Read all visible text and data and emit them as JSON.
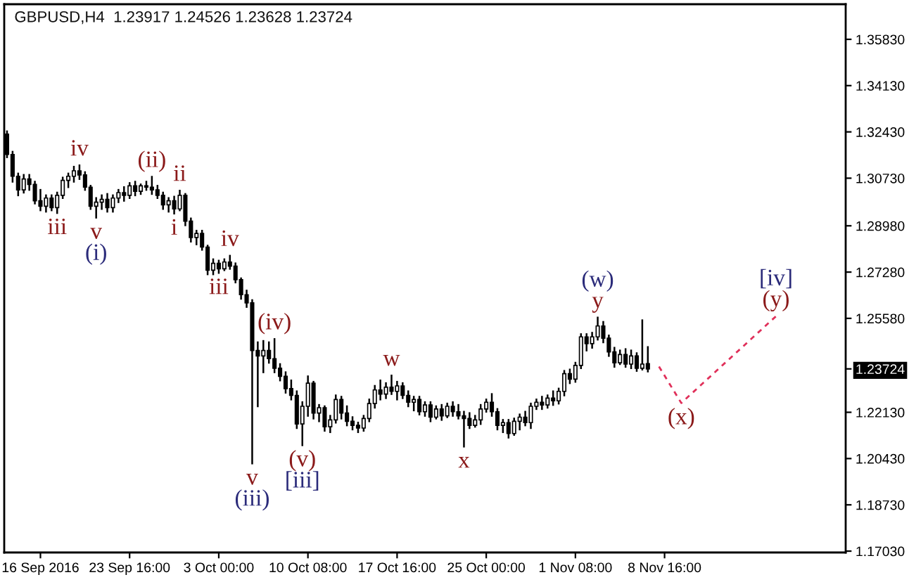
{
  "chart_data": {
    "type": "candlestick",
    "title": "GBPUSD,H4  1.23917 1.24526 1.23628 1.23724",
    "color": "#000000",
    "categories": [
      null,
      null,
      null,
      null,
      null,
      null,
      "16 Sep 2016",
      null,
      null,
      null,
      null,
      null,
      null,
      null,
      null,
      null,
      null,
      null,
      null,
      null,
      null,
      null,
      "23 Sep 16:00",
      null,
      null,
      null,
      null,
      null,
      null,
      null,
      null,
      null,
      null,
      null,
      null,
      null,
      null,
      null,
      "3 Oct 00:00",
      null,
      null,
      null,
      null,
      null,
      null,
      null,
      null,
      null,
      null,
      null,
      null,
      null,
      null,
      null,
      "10 Oct 08:00",
      null,
      null,
      null,
      null,
      null,
      null,
      null,
      null,
      null,
      null,
      null,
      null,
      null,
      null,
      null,
      "17 Oct 16:00",
      null,
      null,
      null,
      null,
      null,
      null,
      null,
      null,
      null,
      null,
      null,
      null,
      null,
      null,
      null,
      "25 Oct 00:00",
      null,
      null,
      null,
      null,
      null,
      null,
      null,
      null,
      null,
      null,
      null,
      null,
      null,
      null,
      null,
      "1 Nov 08:00",
      null,
      null,
      null,
      null,
      null,
      null,
      null,
      null,
      null,
      null,
      null,
      null,
      null,
      null,
      null,
      "8 Nov 16:00",
      null,
      null,
      null,
      null,
      null,
      null,
      null,
      null,
      null,
      null,
      null,
      null,
      null,
      null,
      null,
      null,
      null,
      null,
      null,
      null,
      null,
      null,
      null,
      null,
      null,
      null,
      null,
      null,
      null,
      null,
      null,
      null
    ],
    "ohlc": [
      [
        1.3235,
        1.3245,
        1.315,
        1.316
      ],
      [
        1.316,
        1.317,
        1.306,
        1.308
      ],
      [
        1.308,
        1.309,
        1.301,
        1.303
      ],
      [
        1.303,
        1.3085,
        1.302,
        1.307
      ],
      [
        1.307,
        1.3085,
        1.303,
        1.305
      ],
      [
        1.305,
        1.306,
        1.298,
        1.299
      ],
      [
        1.299,
        1.303,
        1.2955,
        1.297
      ],
      [
        1.297,
        1.301,
        1.295,
        1.3
      ],
      [
        1.3,
        1.301,
        1.2955,
        1.2965
      ],
      [
        1.2965,
        1.302,
        1.2945,
        1.301
      ],
      [
        1.301,
        1.3075,
        1.3,
        1.3065
      ],
      [
        1.3065,
        1.309,
        1.304,
        1.308
      ],
      [
        1.308,
        1.3115,
        1.306,
        1.31
      ],
      [
        1.31,
        1.312,
        1.307,
        1.3085
      ],
      [
        1.3085,
        1.3095,
        1.303,
        1.304
      ],
      [
        1.304,
        1.3045,
        1.296,
        1.297
      ],
      [
        1.297,
        1.3,
        1.2928,
        1.2985
      ],
      [
        1.2985,
        1.301,
        1.296,
        1.2995
      ],
      [
        1.2995,
        1.3015,
        1.295,
        1.2965
      ],
      [
        1.2965,
        1.301,
        1.295,
        1.3
      ],
      [
        1.3,
        1.303,
        1.2985,
        1.302
      ],
      [
        1.302,
        1.304,
        1.299,
        1.301
      ],
      [
        1.301,
        1.3055,
        1.3,
        1.3045
      ],
      [
        1.3045,
        1.306,
        1.301,
        1.3025
      ],
      [
        1.3025,
        1.305,
        1.3015,
        1.3045
      ],
      [
        1.3045,
        1.306,
        1.303,
        1.304
      ],
      [
        1.304,
        1.3078,
        1.3015,
        1.303
      ],
      [
        1.303,
        1.3045,
        1.3,
        1.301
      ],
      [
        1.301,
        1.302,
        1.296,
        1.2975
      ],
      [
        1.2975,
        1.3,
        1.295,
        1.299
      ],
      [
        1.299,
        1.3005,
        1.2943,
        1.296
      ],
      [
        1.296,
        1.3027,
        1.2955,
        1.301
      ],
      [
        1.301,
        1.3015,
        1.29,
        1.2915
      ],
      [
        1.2915,
        1.2925,
        1.284,
        1.2855
      ],
      [
        1.2855,
        1.288,
        1.283,
        1.287
      ],
      [
        1.287,
        1.288,
        1.281,
        1.282
      ],
      [
        1.282,
        1.2825,
        1.272,
        1.2735
      ],
      [
        1.2735,
        1.2775,
        1.272,
        1.276
      ],
      [
        1.276,
        1.277,
        1.2725,
        1.274
      ],
      [
        1.274,
        1.2775,
        1.2735,
        1.2765
      ],
      [
        1.2765,
        1.2788,
        1.274,
        1.275
      ],
      [
        1.275,
        1.276,
        1.269,
        1.27
      ],
      [
        1.27,
        1.2705,
        1.263,
        1.2645
      ],
      [
        1.2645,
        1.266,
        1.26,
        1.2615
      ],
      [
        1.2615,
        1.2625,
        1.2025,
        1.244
      ],
      [
        1.244,
        1.247,
        1.2235,
        1.242
      ],
      [
        1.242,
        1.2475,
        1.236,
        1.244
      ],
      [
        1.244,
        1.247,
        1.2395,
        1.241
      ],
      [
        1.241,
        1.2482,
        1.236,
        1.2375
      ],
      [
        1.2375,
        1.239,
        1.233,
        1.2345
      ],
      [
        1.2345,
        1.236,
        1.2285,
        1.23
      ],
      [
        1.23,
        1.233,
        1.226,
        1.2275
      ],
      [
        1.2275,
        1.229,
        1.2155,
        1.217
      ],
      [
        1.217,
        1.225,
        1.2092,
        1.2235
      ],
      [
        1.2235,
        1.2345,
        1.22,
        1.232
      ],
      [
        1.232,
        1.2325,
        1.219,
        1.221
      ],
      [
        1.221,
        1.224,
        1.218,
        1.223
      ],
      [
        1.223,
        1.2235,
        1.2145,
        1.216
      ],
      [
        1.216,
        1.22,
        1.214,
        1.2185
      ],
      [
        1.2185,
        1.2275,
        1.2175,
        1.226
      ],
      [
        1.226,
        1.227,
        1.219,
        1.221
      ],
      [
        1.221,
        1.2235,
        1.2165,
        1.218
      ],
      [
        1.218,
        1.2195,
        1.215,
        1.2165
      ],
      [
        1.2165,
        1.2175,
        1.214,
        1.2155
      ],
      [
        1.2155,
        1.22,
        1.2145,
        1.219
      ],
      [
        1.219,
        1.226,
        1.218,
        1.2245
      ],
      [
        1.2245,
        1.231,
        1.223,
        1.2295
      ],
      [
        1.2295,
        1.233,
        1.226,
        1.228
      ],
      [
        1.228,
        1.232,
        1.2265,
        1.2305
      ],
      [
        1.2305,
        1.2348,
        1.228,
        1.229
      ],
      [
        1.229,
        1.2325,
        1.226,
        1.231
      ],
      [
        1.231,
        1.232,
        1.2265,
        1.2275
      ],
      [
        1.2275,
        1.229,
        1.2235,
        1.225
      ],
      [
        1.225,
        1.227,
        1.222,
        1.226
      ],
      [
        1.226,
        1.227,
        1.2205,
        1.2215
      ],
      [
        1.2215,
        1.225,
        1.22,
        1.224
      ],
      [
        1.224,
        1.225,
        1.218,
        1.2195
      ],
      [
        1.2195,
        1.2235,
        1.219,
        1.2225
      ],
      [
        1.2225,
        1.224,
        1.2185,
        1.22
      ],
      [
        1.22,
        1.2245,
        1.2195,
        1.2235
      ],
      [
        1.2235,
        1.225,
        1.22,
        1.2215
      ],
      [
        1.2215,
        1.224,
        1.219,
        1.22
      ],
      [
        1.22,
        1.2215,
        1.2087,
        1.219
      ],
      [
        1.219,
        1.221,
        1.2155,
        1.2165
      ],
      [
        1.2165,
        1.22,
        1.216,
        1.2185
      ],
      [
        1.2185,
        1.224,
        1.217,
        1.2225
      ],
      [
        1.2225,
        1.226,
        1.2215,
        1.225
      ],
      [
        1.225,
        1.228,
        1.22,
        1.2215
      ],
      [
        1.2215,
        1.2225,
        1.215,
        1.2165
      ],
      [
        1.2165,
        1.2185,
        1.214,
        1.2175
      ],
      [
        1.2175,
        1.2185,
        1.212,
        1.2135
      ],
      [
        1.2135,
        1.219,
        1.213,
        1.218
      ],
      [
        1.218,
        1.2205,
        1.215,
        1.2195
      ],
      [
        1.2195,
        1.2215,
        1.2165,
        1.2175
      ],
      [
        1.2175,
        1.2245,
        1.2155,
        1.2235
      ],
      [
        1.2235,
        1.226,
        1.2225,
        1.225
      ],
      [
        1.225,
        1.227,
        1.2225,
        1.224
      ],
      [
        1.224,
        1.2275,
        1.223,
        1.2265
      ],
      [
        1.2265,
        1.229,
        1.224,
        1.2255
      ],
      [
        1.2255,
        1.23,
        1.2245,
        1.229
      ],
      [
        1.229,
        1.2365,
        1.2275,
        1.2355
      ],
      [
        1.2355,
        1.237,
        1.232,
        1.2335
      ],
      [
        1.2335,
        1.2395,
        1.2325,
        1.2385
      ],
      [
        1.2385,
        1.25,
        1.2375,
        1.249
      ],
      [
        1.249,
        1.25,
        1.244,
        1.2465
      ],
      [
        1.2465,
        1.2505,
        1.245,
        1.249
      ],
      [
        1.249,
        1.2561,
        1.248,
        1.253
      ],
      [
        1.253,
        1.2545,
        1.247,
        1.2485
      ],
      [
        1.2485,
        1.2495,
        1.242,
        1.2435
      ],
      [
        1.2435,
        1.245,
        1.238,
        1.2395
      ],
      [
        1.2395,
        1.244,
        1.239,
        1.2425
      ],
      [
        1.2425,
        1.2445,
        1.238,
        1.239
      ],
      [
        1.239,
        1.244,
        1.2375,
        1.242
      ],
      [
        1.242,
        1.243,
        1.2365,
        1.2375
      ],
      [
        1.2375,
        1.2551,
        1.237,
        1.239
      ],
      [
        1.23917,
        1.24526,
        1.23628,
        1.23724
      ],
      null,
      null,
      null,
      null,
      null,
      null,
      null,
      null,
      null,
      null,
      null,
      null,
      null,
      null,
      null,
      null,
      null,
      null,
      null,
      null,
      null,
      null,
      null,
      null,
      null,
      null,
      null,
      null,
      null,
      null,
      null,
      null,
      null,
      null,
      null
    ],
    "series": [
      {
        "type": "line",
        "color": "#e0305a",
        "line_style": "dashed",
        "values": [
          null,
          null,
          null,
          null,
          null,
          null,
          null,
          null,
          null,
          null,
          null,
          null,
          null,
          null,
          null,
          null,
          null,
          null,
          null,
          null,
          null,
          null,
          null,
          null,
          null,
          null,
          null,
          null,
          null,
          null,
          null,
          null,
          null,
          null,
          null,
          null,
          null,
          null,
          null,
          null,
          null,
          null,
          null,
          null,
          null,
          null,
          null,
          null,
          null,
          null,
          null,
          null,
          null,
          null,
          null,
          null,
          null,
          null,
          null,
          null,
          null,
          null,
          null,
          null,
          null,
          null,
          null,
          null,
          null,
          null,
          null,
          null,
          null,
          null,
          null,
          null,
          null,
          null,
          null,
          null,
          null,
          null,
          null,
          null,
          null,
          null,
          null,
          null,
          null,
          null,
          null,
          null,
          null,
          null,
          null,
          null,
          null,
          null,
          null,
          null,
          null,
          null,
          null,
          null,
          null,
          null,
          null,
          null,
          null,
          null,
          null,
          null,
          null,
          null,
          null,
          null,
          null,
          1.2381,
          null,
          null,
          null,
          1.2247,
          null,
          null,
          null,
          null,
          null,
          null,
          null,
          null,
          null,
          null,
          null,
          null,
          null,
          null,
          null,
          null,
          1.2566,
          null,
          null,
          null,
          null,
          null,
          null,
          null,
          null,
          null,
          null,
          null,
          null
        ]
      }
    ],
    "ylim": [
      1.1698,
      1.3712
    ],
    "yticks": [
      {
        "value": 1.3583,
        "label": "1.35830"
      },
      {
        "value": 1.3413,
        "label": "1.34130"
      },
      {
        "value": 1.3243,
        "label": "1.32430"
      },
      {
        "value": 1.3073,
        "label": "1.30730"
      },
      {
        "value": 1.2898,
        "label": "1.28980"
      },
      {
        "value": 1.2728,
        "label": "1.27280"
      },
      {
        "value": 1.2558,
        "label": "1.25580"
      },
      {
        "value": 1.23724,
        "label": "1.23724"
      },
      {
        "value": 1.2213,
        "label": "1.22130"
      },
      {
        "value": 1.2043,
        "label": "1.20430"
      },
      {
        "value": 1.1873,
        "label": "1.18730"
      },
      {
        "value": 1.1703,
        "label": "1.17030"
      }
    ],
    "annotations": [
      {
        "text": "iv",
        "y": 1.312
      },
      {
        "text": "(ii)",
        "y": 1.3078
      },
      {
        "text": "ii",
        "y": 1.3027
      },
      {
        "text": "iii",
        "y": 1.2945
      },
      {
        "text": "v",
        "y": 1.2928
      },
      {
        "text": "(i)",
        "y": 1.2928
      },
      {
        "text": "i",
        "y": 1.2943
      },
      {
        "text": "iv",
        "y": 1.2788
      },
      {
        "text": "iii",
        "y": 1.2725
      },
      {
        "text": "(iv)",
        "y": 1.2482
      },
      {
        "text": "v",
        "y": 1.2025
      },
      {
        "text": "(iii)",
        "y": 1.2025
      },
      {
        "text": "(v)",
        "y": 1.2092
      },
      {
        "text": "[iii]",
        "y": 1.2092
      },
      {
        "text": "w",
        "y": 1.2348
      },
      {
        "text": "x",
        "y": 1.2087
      },
      {
        "text": "y",
        "y": 1.2561
      },
      {
        "text": "(w)",
        "y": 1.2561
      },
      {
        "text": "(x)",
        "y": 1.2247
      },
      {
        "text": "(y)",
        "y": 1.2566
      },
      {
        "text": "[iv]",
        "y": 1.2566
      }
    ]
  }
}
